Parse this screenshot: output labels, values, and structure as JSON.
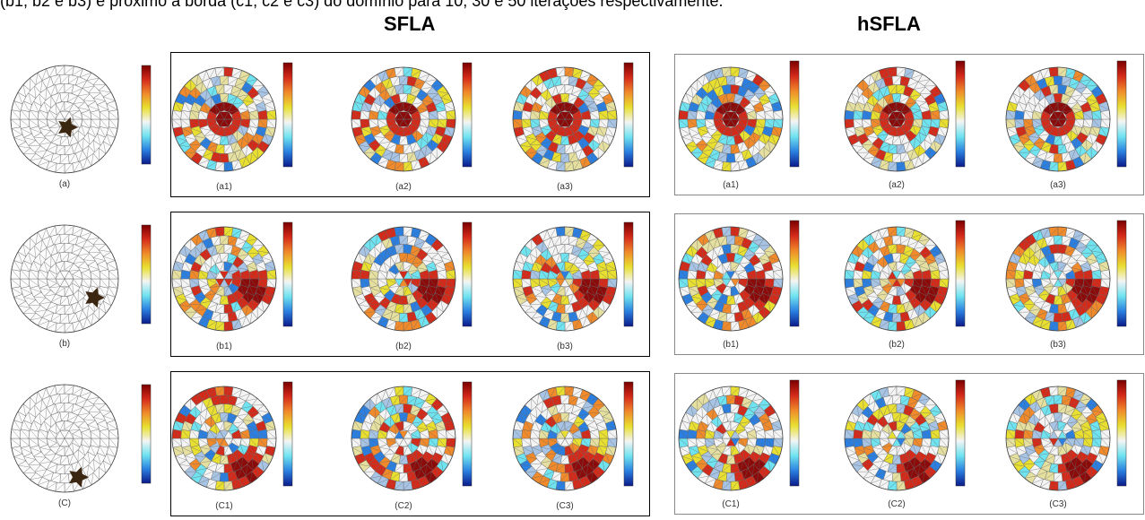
{
  "caption_text": "(b1, b2 e b3) e próximo à borda (c1, c2 e c3) do domínio para 10, 30 e 50 iterações respectivamente.",
  "headings": {
    "sfla": "SFLA",
    "hsfla": "hSFLA"
  },
  "rows": [
    {
      "original_label": "(a)",
      "sfla_labels": [
        "(a1)",
        "(a2)",
        "(a3)"
      ],
      "hsfla_labels": [
        "(a1)",
        "(a2)",
        "(a3)"
      ]
    },
    {
      "original_label": "(b)",
      "sfla_labels": [
        "(b1)",
        "(b2)",
        "(b3)"
      ],
      "hsfla_labels": [
        "(b1)",
        "(b2)",
        "(b3)"
      ]
    },
    {
      "original_label": "(C)",
      "sfla_labels": [
        "(C1)",
        "(C2)",
        "(C3)"
      ],
      "hsfla_labels": [
        "(C1)",
        "(C2)",
        "(C3)"
      ]
    }
  ],
  "colors": {
    "anomaly": "#3b2612",
    "mesh": "#666666",
    "colorbar": [
      "#7a0000",
      "#d42a1a",
      "#f08a2a",
      "#e8df30",
      "#f4f4f4",
      "#6fe3f0",
      "#2a7fe0",
      "#0a1a8a"
    ]
  }
}
